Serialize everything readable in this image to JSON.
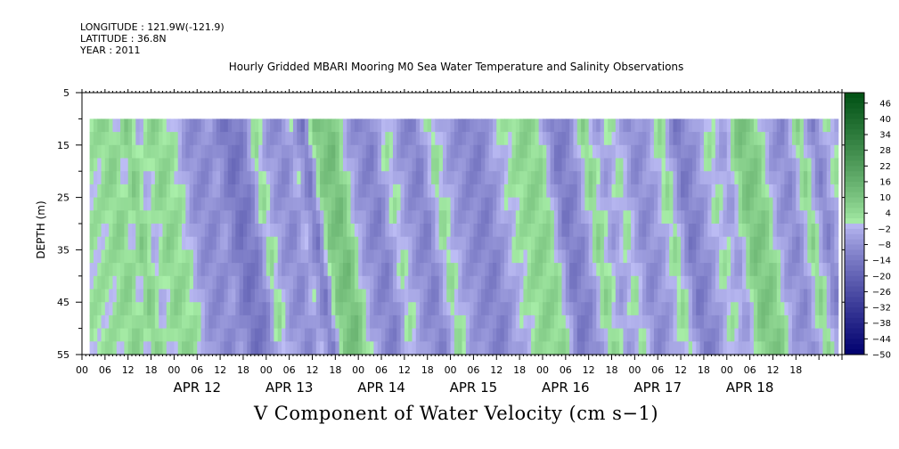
{
  "header": {
    "longitude": "LONGITUDE : 121.9W(-121.9)",
    "latitude": "LATITUDE : 36.8N",
    "year": "YEAR : 2011"
  },
  "chart_data": {
    "type": "heatmap",
    "title": "Hourly Gridded MBARI Mooring M0 Sea Water Temperature and Salinity Observations",
    "xlabel": "V Component of Water Velocity (cm s−1)",
    "ylabel": "DEPTH (m)",
    "ylim": [
      5,
      55
    ],
    "y_inverted": true,
    "y_ticks": [
      5,
      15,
      25,
      35,
      45,
      55
    ],
    "x_hour_ticks": [
      "00",
      "06",
      "12",
      "18",
      "00",
      "06",
      "12",
      "18",
      "00",
      "06",
      "12",
      "18",
      "00",
      "06",
      "12",
      "18",
      "00",
      "06",
      "12",
      "18",
      "00",
      "06",
      "12",
      "18",
      "00",
      "06",
      "12",
      "18",
      "00",
      "06",
      "12",
      "18"
    ],
    "x_day_labels": [
      "APR 12",
      "APR 13",
      "APR 14",
      "APR 15",
      "APR 16",
      "APR 17",
      "APR 18"
    ],
    "x_range_hours_from_apr11_00": [
      0,
      198
    ],
    "data_start_hour": 2,
    "data_end_hour": 197,
    "data_depth_range": [
      10,
      55
    ],
    "colorbar": {
      "min": -50,
      "max": 50,
      "tick_labels": [
        "46",
        "40",
        "34",
        "28",
        "22",
        "16",
        "10",
        "4",
        "−2",
        "−8",
        "−14",
        "−20",
        "−26",
        "−32",
        "−38",
        "−44",
        "−50"
      ]
    },
    "velocity_profile": [
      {
        "hour": 2,
        "v": 2
      },
      {
        "hour": 6,
        "v": 6
      },
      {
        "hour": 9,
        "v": 0
      },
      {
        "hour": 11,
        "v": 8
      },
      {
        "hour": 14,
        "v": -2
      },
      {
        "hour": 18,
        "v": 6
      },
      {
        "hour": 23,
        "v": 1
      },
      {
        "hour": 26,
        "v": -8
      },
      {
        "hour": 30,
        "v": -10
      },
      {
        "hour": 33,
        "v": -6
      },
      {
        "hour": 37,
        "v": -16
      },
      {
        "hour": 41,
        "v": -12
      },
      {
        "hour": 44,
        "v": 4
      },
      {
        "hour": 47,
        "v": -6
      },
      {
        "hour": 51,
        "v": -10
      },
      {
        "hour": 54,
        "v": -2
      },
      {
        "hour": 57,
        "v": -14
      },
      {
        "hour": 60,
        "v": 8
      },
      {
        "hour": 64,
        "v": 12
      },
      {
        "hour": 68,
        "v": -4
      },
      {
        "hour": 71,
        "v": -10
      },
      {
        "hour": 74,
        "v": -12
      },
      {
        "hour": 78,
        "v": 2
      },
      {
        "hour": 82,
        "v": -8
      },
      {
        "hour": 86,
        "v": -12
      },
      {
        "hour": 90,
        "v": 4
      },
      {
        "hour": 94,
        "v": -6
      },
      {
        "hour": 98,
        "v": -10
      },
      {
        "hour": 102,
        "v": -12
      },
      {
        "hour": 106,
        "v": -4
      },
      {
        "hour": 110,
        "v": 2
      },
      {
        "hour": 114,
        "v": 6
      },
      {
        "hour": 118,
        "v": 4
      },
      {
        "hour": 122,
        "v": -14
      },
      {
        "hour": 126,
        "v": -10
      },
      {
        "hour": 130,
        "v": 6
      },
      {
        "hour": 134,
        "v": -6
      },
      {
        "hour": 138,
        "v": 2
      },
      {
        "hour": 142,
        "v": -10
      },
      {
        "hour": 146,
        "v": -6
      },
      {
        "hour": 150,
        "v": 4
      },
      {
        "hour": 154,
        "v": -14
      },
      {
        "hour": 158,
        "v": -8
      },
      {
        "hour": 162,
        "v": 2
      },
      {
        "hour": 166,
        "v": -6
      },
      {
        "hour": 170,
        "v": 10
      },
      {
        "hour": 174,
        "v": 8
      },
      {
        "hour": 178,
        "v": -6
      },
      {
        "hour": 182,
        "v": -10
      },
      {
        "hour": 186,
        "v": 6
      },
      {
        "hour": 190,
        "v": -12
      },
      {
        "hour": 194,
        "v": 2
      },
      {
        "hour": 197,
        "v": -4
      }
    ],
    "grid": false,
    "legend": "colorbar-right"
  }
}
